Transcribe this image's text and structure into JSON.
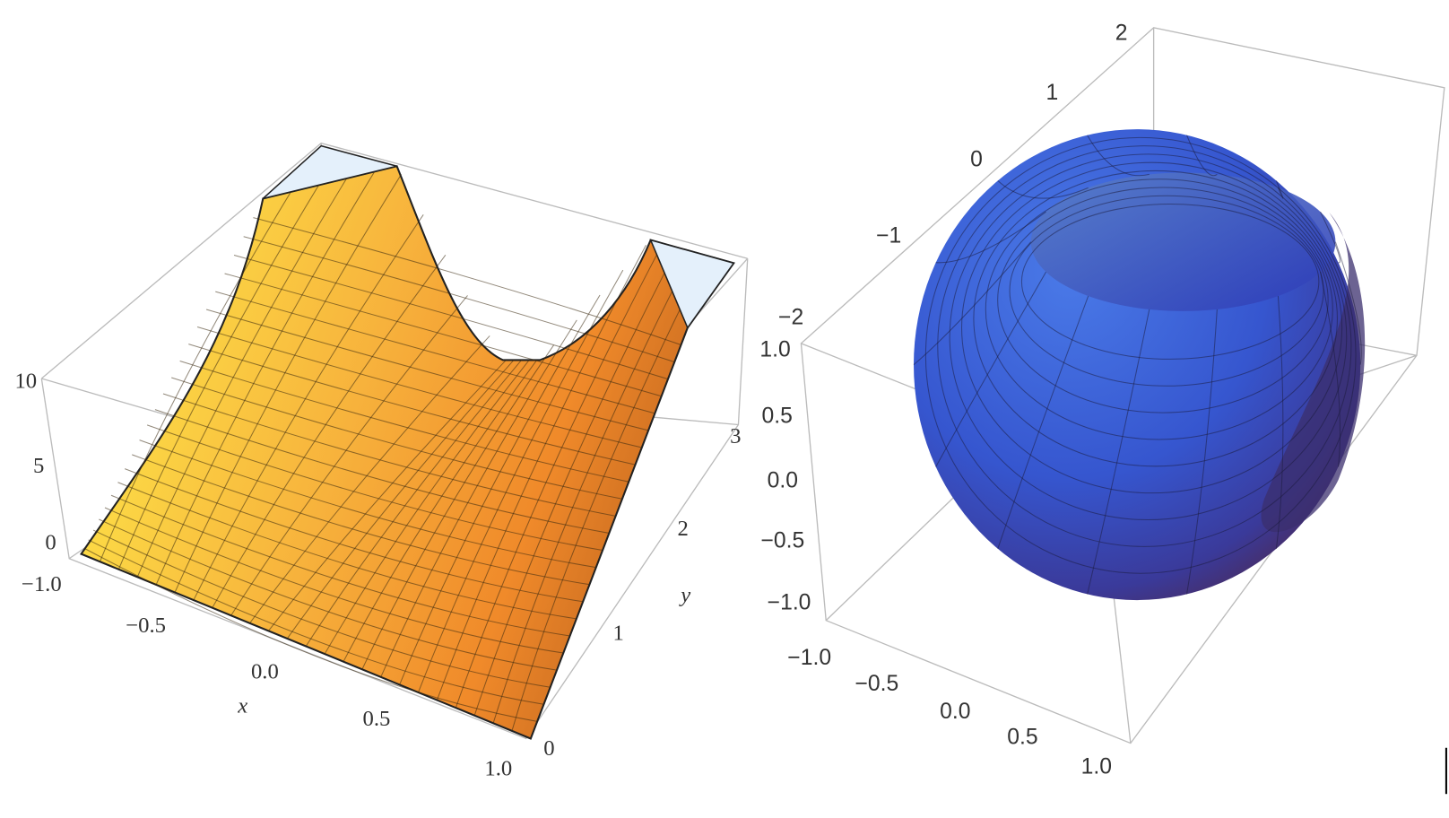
{
  "left_plot": {
    "z_ticks": [
      "10",
      "5",
      "0"
    ],
    "x_ticks": [
      "−1.0",
      "−0.5",
      "0.0",
      "0.5",
      "1.0"
    ],
    "x_label": "x",
    "y_ticks": [
      "0",
      "1",
      "2",
      "3"
    ],
    "y_label": "y"
  },
  "right_plot": {
    "back_ticks": [
      "2",
      "1",
      "0",
      "−1",
      "−2"
    ],
    "left_ticks": [
      "1.0",
      "0.5",
      "0.0",
      "−0.5",
      "−1.0"
    ],
    "bottom_ticks": [
      "−1.0",
      "−0.5",
      "0.0",
      "0.5",
      "1.0"
    ]
  }
}
